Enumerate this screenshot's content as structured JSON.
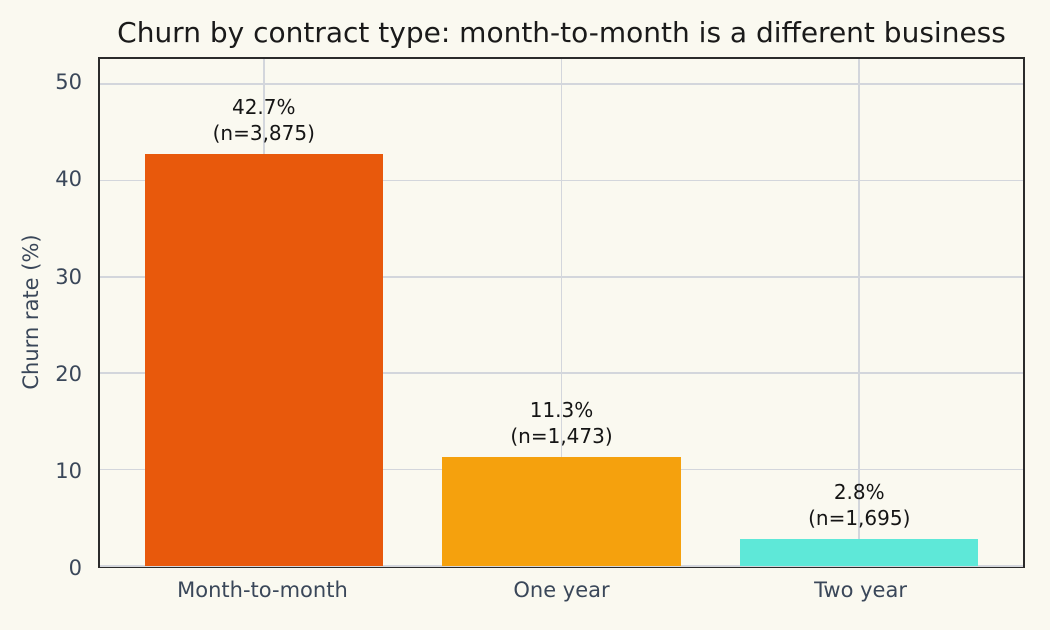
{
  "colors": {
    "background": "#faf9f0",
    "grid": "#d3d6dc",
    "spine": "#2b2b2b",
    "title_text": "#1a1a1a",
    "tick_text": "#3a4759",
    "annotation_text": "#151515"
  },
  "chart_data": {
    "type": "bar",
    "title": "Churn by contract type: month-to-month is a different business",
    "xlabel": "",
    "ylabel": "Churn rate (%)",
    "categories": [
      "Month-to-month",
      "One year",
      "Two year"
    ],
    "values": [
      42.7,
      11.3,
      2.8
    ],
    "sample_sizes": [
      3875,
      1473,
      1695
    ],
    "bar_labels": [
      [
        "42.7%",
        "(n=3,875)"
      ],
      [
        "11.3%",
        "(n=1,473)"
      ],
      [
        "2.8%",
        "(n=1,695)"
      ]
    ],
    "bar_colors": [
      "#e8590c",
      "#f5a10d",
      "#5ee8d8"
    ],
    "yticks": [
      0,
      10,
      20,
      30,
      40,
      50
    ],
    "ylim": [
      0,
      52.6
    ],
    "xlim_pad": 0.55,
    "bar_width": 0.8,
    "grid": true,
    "legend": "none"
  }
}
